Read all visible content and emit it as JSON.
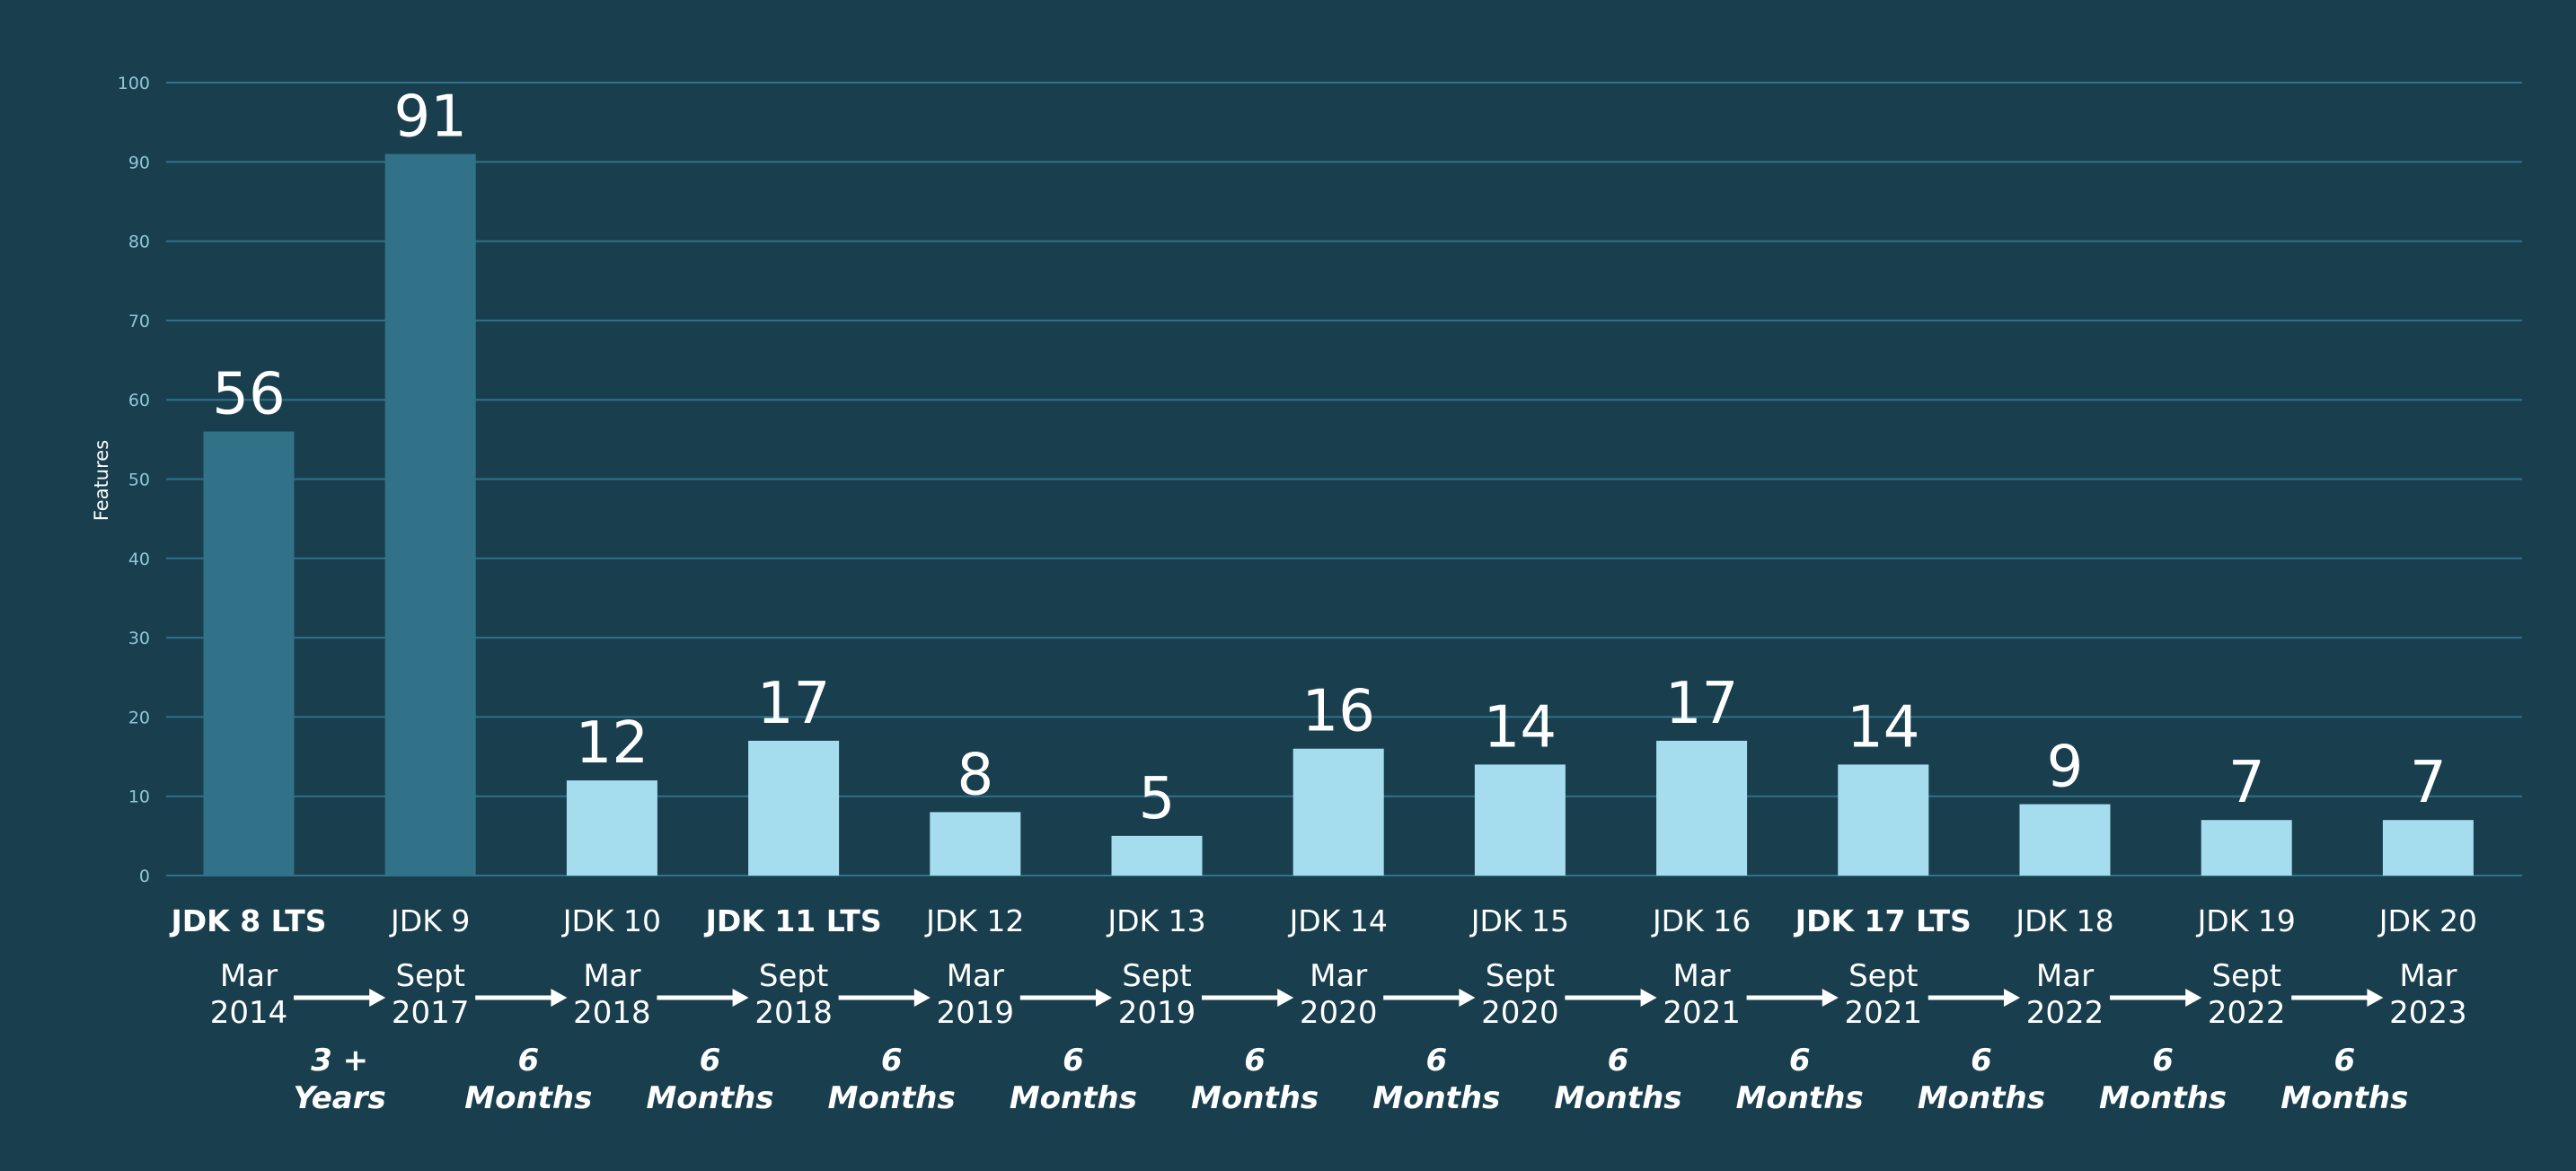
{
  "chart_data": {
    "type": "bar",
    "ylabel": "Features",
    "ylim": [
      0,
      100
    ],
    "yticks": [
      0,
      10,
      20,
      30,
      40,
      50,
      60,
      70,
      80,
      90,
      100
    ],
    "grid": true,
    "categories": [
      "JDK 8 LTS",
      "JDK 9",
      "JDK 10",
      "JDK 11 LTS",
      "JDK 12",
      "JDK 13",
      "JDK 14",
      "JDK 15",
      "JDK 16",
      "JDK 17 LTS",
      "JDK 18",
      "JDK 19",
      "JDK 20"
    ],
    "bold_categories": [
      "JDK 8 LTS",
      "JDK 11 LTS",
      "JDK 17 LTS"
    ],
    "values": [
      56,
      91,
      12,
      17,
      8,
      5,
      16,
      14,
      17,
      14,
      9,
      7,
      7
    ],
    "release_dates": [
      [
        "Mar",
        "2014"
      ],
      [
        "Sept",
        "2017"
      ],
      [
        "Mar",
        "2018"
      ],
      [
        "Sept",
        "2018"
      ],
      [
        "Mar",
        "2019"
      ],
      [
        "Sept",
        "2019"
      ],
      [
        "Mar",
        "2020"
      ],
      [
        "Sept",
        "2020"
      ],
      [
        "Mar",
        "2021"
      ],
      [
        "Sept",
        "2021"
      ],
      [
        "Mar",
        "2022"
      ],
      [
        "Sept",
        "2022"
      ],
      [
        "Mar",
        "2023"
      ]
    ],
    "intervals": [
      [
        "3 +",
        "Years"
      ],
      [
        "6",
        "Months"
      ],
      [
        "6",
        "Months"
      ],
      [
        "6",
        "Months"
      ],
      [
        "6",
        "Months"
      ],
      [
        "6",
        "Months"
      ],
      [
        "6",
        "Months"
      ],
      [
        "6",
        "Months"
      ],
      [
        "6",
        "Months"
      ],
      [
        "6",
        "Months"
      ],
      [
        "6",
        "Months"
      ],
      [
        "6",
        "Months"
      ]
    ],
    "colors": {
      "background": "#193f4f",
      "grid": "#2f7289",
      "bar_early": "#317289",
      "bar_later": "#a6ddee",
      "text": "#ffffff",
      "tick": "#8fc6d6"
    }
  }
}
